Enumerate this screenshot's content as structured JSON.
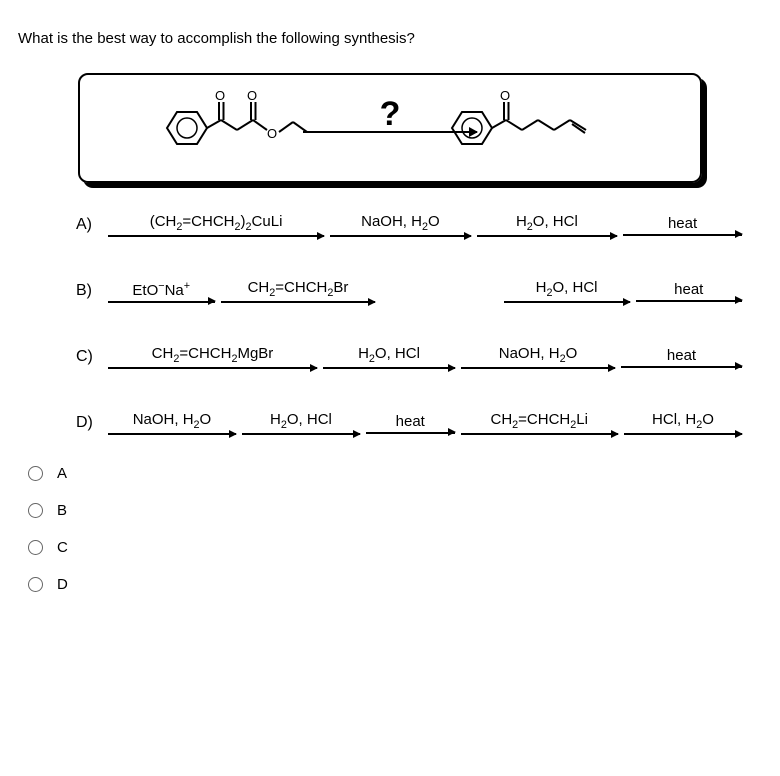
{
  "question": "What is the best way to accomplish the following synthesis?",
  "qmark": "?",
  "options": {
    "A": {
      "label": "A)",
      "steps": [
        "(CH₂=CHCH₂)₂CuLi",
        "NaOH, H₂O",
        "H₂O, HCl",
        "heat"
      ]
    },
    "B": {
      "label": "B)",
      "steps": [
        "EtO⁻Na⁺",
        "CH₂=CHCH₂Br",
        "H₂O, HCl",
        "heat"
      ],
      "gap_after": 1
    },
    "C": {
      "label": "C)",
      "steps": [
        "CH₂=CHCH₂MgBr",
        "H₂O, HCl",
        "NaOH, H₂O",
        "heat"
      ]
    },
    "D": {
      "label": "D)",
      "steps": [
        "NaOH, H₂O",
        "H₂O, HCl",
        "heat",
        "CH₂=CHCH₂Li",
        "HCl, H₂O"
      ]
    }
  },
  "radios": [
    "A",
    "B",
    "C",
    "D"
  ],
  "colors": {
    "text": "#000000",
    "bg": "#ffffff",
    "radio_border": "#666666"
  }
}
